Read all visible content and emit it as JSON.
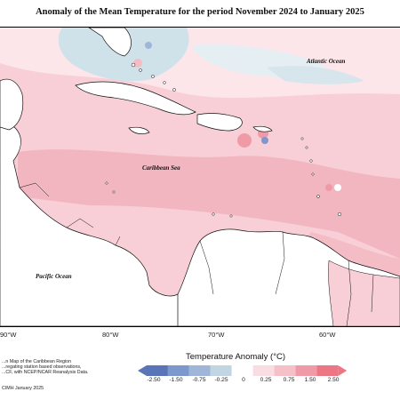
{
  "title": "Anomaly of the Mean Temperature for the period November 2024 to January 2025",
  "labels": {
    "atlantic": "Atlantic Ocean",
    "caribbean": "Caribbean Sea",
    "pacific": "Pacific Ocean"
  },
  "longitudes": [
    "90°W",
    "80°W",
    "70°W",
    "60°W"
  ],
  "notes": [
    "...n Map of the Caribbean Region",
    "...regating station based observations,",
    "...CF, with NCEP/NCAR Reanalysis Data.",
    "CIMH January 2025"
  ],
  "legend": {
    "title": "Temperature Anomaly (°C)",
    "ticks": [
      "-2.50",
      "-1.50",
      "-0.75",
      "-0.25",
      "0",
      "0.25",
      "0.75",
      "1.50",
      "2.50"
    ],
    "colors": [
      "#5a74b8",
      "#7d98cc",
      "#9fb6d8",
      "#c1d6e2",
      "#ffffff",
      "#fadde2",
      "#f5c0c8",
      "#f19aa7",
      "#ee7583"
    ]
  },
  "colors": {
    "land": "#ffffff",
    "neutral_sea": "#fde6ea",
    "warm_light": "#f8cfd6",
    "warm_mid": "#f2aab5",
    "cool": "#cfe2ea"
  }
}
